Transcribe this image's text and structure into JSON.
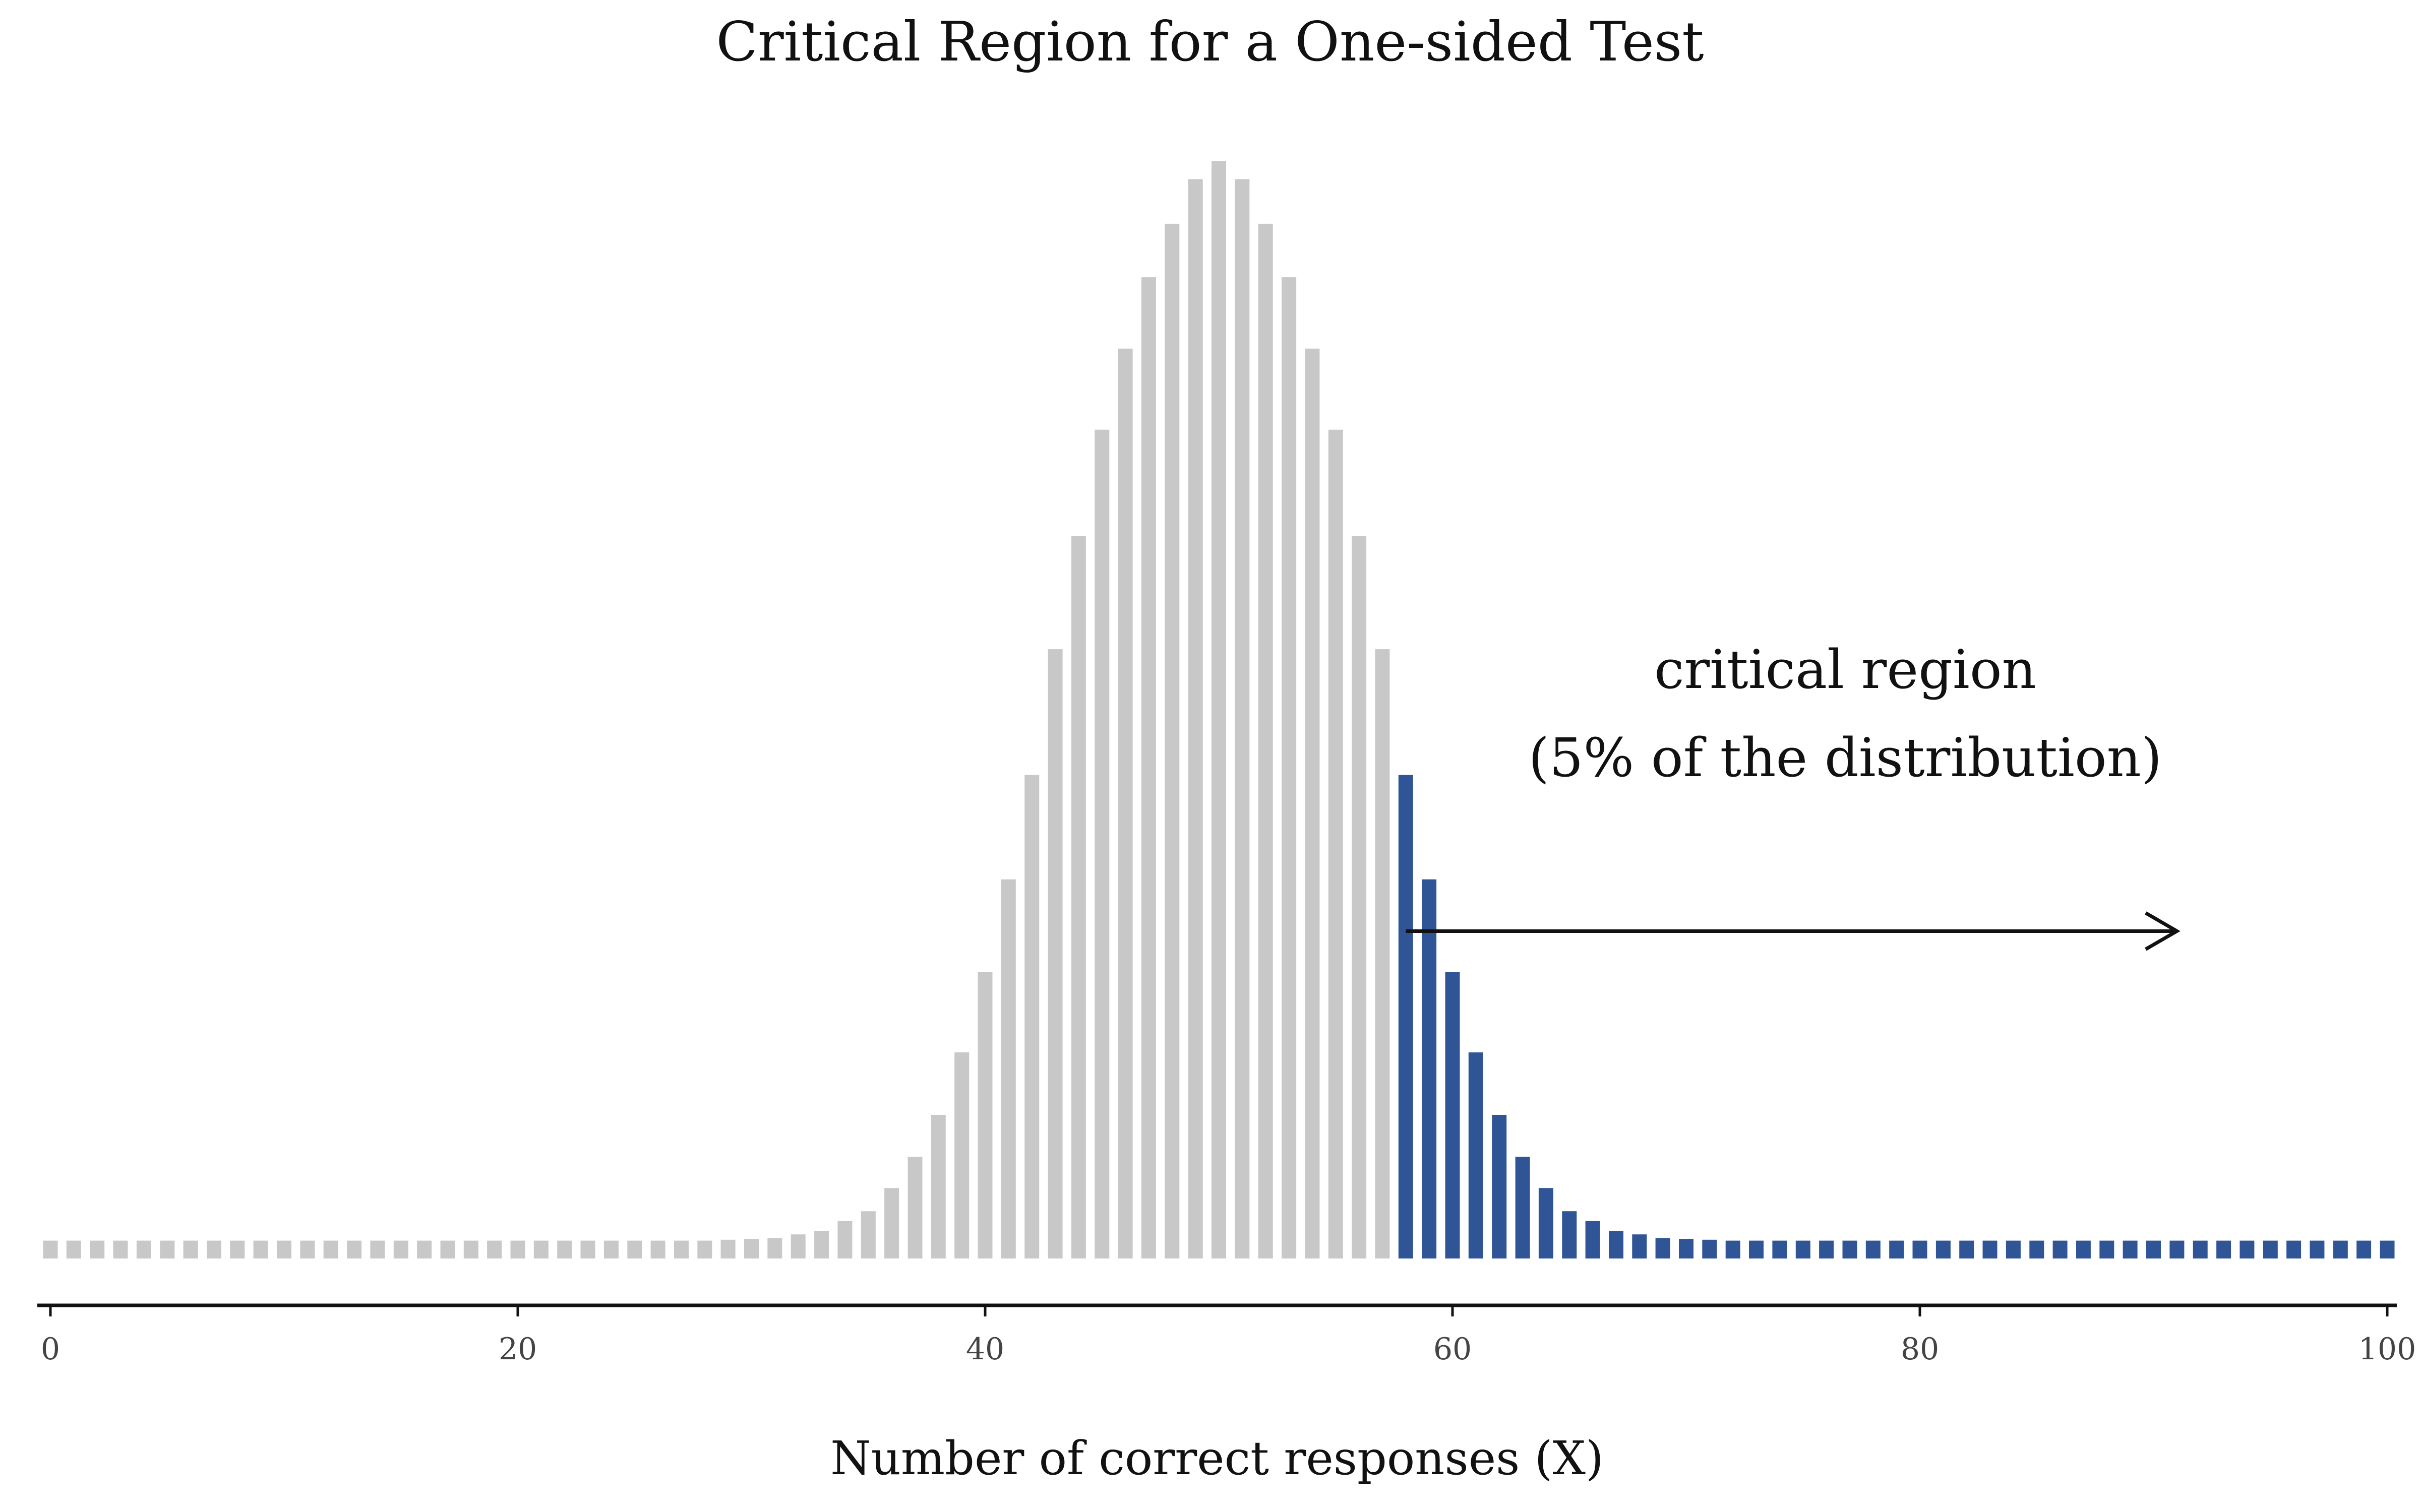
{
  "chart_data": {
    "type": "bar",
    "title": "Critical Region for a One-sided Test",
    "xlabel": "Number of correct responses (X)",
    "ylabel": "",
    "xlim": [
      0,
      100
    ],
    "x_ticks": [
      "0",
      "20",
      "40",
      "60",
      "80",
      "100"
    ],
    "y_axis_shown": false,
    "grid": false,
    "baseline_value": 0.002,
    "critical_value": 58,
    "colors": {
      "non_critical": "#c8c8c8",
      "critical": "#2f5597",
      "arrow": "#111111"
    },
    "annotation": {
      "lines": [
        "critical region",
        "(5% of the distribution)"
      ],
      "arrow_from_x": 58,
      "arrow_to_x": 91,
      "arrow_at_value": 0.0347
    },
    "series": [
      {
        "name": "",
        "x": [
          0,
          1,
          2,
          3,
          4,
          5,
          6,
          7,
          8,
          9,
          10,
          11,
          12,
          13,
          14,
          15,
          16,
          17,
          18,
          19,
          20,
          21,
          22,
          23,
          24,
          25,
          26,
          27,
          28,
          29,
          30,
          31,
          32,
          33,
          34,
          35,
          36,
          37,
          38,
          39,
          40,
          41,
          42,
          43,
          44,
          45,
          46,
          47,
          48,
          49,
          50,
          51,
          52,
          53,
          54,
          55,
          56,
          57,
          58,
          59,
          60,
          61,
          62,
          63,
          64,
          65,
          66,
          67,
          68,
          69,
          70,
          71,
          72,
          73,
          74,
          75,
          76,
          77,
          78,
          79,
          80,
          81,
          82,
          83,
          84,
          85,
          86,
          87,
          88,
          89,
          90,
          91,
          92,
          93,
          94,
          95,
          96,
          97,
          98,
          99,
          100
        ],
        "values": [
          0,
          0,
          0,
          0,
          0,
          0,
          0,
          0,
          0,
          0,
          0,
          0,
          0,
          0,
          0,
          0,
          0,
          0,
          0,
          0,
          0,
          0,
          0,
          0,
          0,
          0,
          0,
          0,
          0,
          0.0001,
          0.0002,
          0.0003,
          0.0007,
          0.0011,
          0.0022,
          0.0033,
          0.0059,
          0.0094,
          0.0141,
          0.0211,
          0.0301,
          0.0405,
          0.0522,
          0.0663,
          0.079,
          0.0909,
          0.1,
          0.108,
          0.114,
          0.119,
          0.121,
          0.119,
          0.114,
          0.108,
          0.1,
          0.0909,
          0.079,
          0.0663,
          0.0522,
          0.0405,
          0.0301,
          0.0211,
          0.0141,
          0.0094,
          0.0059,
          0.0033,
          0.0022,
          0.0011,
          0.0007,
          0.0003,
          0.0002,
          0.0001,
          0,
          0,
          0,
          0,
          0,
          0,
          0,
          0,
          0,
          0,
          0,
          0,
          0,
          0,
          0,
          0,
          0,
          0,
          0,
          0,
          0,
          0,
          0,
          0,
          0,
          0,
          0,
          0,
          0
        ]
      }
    ]
  }
}
